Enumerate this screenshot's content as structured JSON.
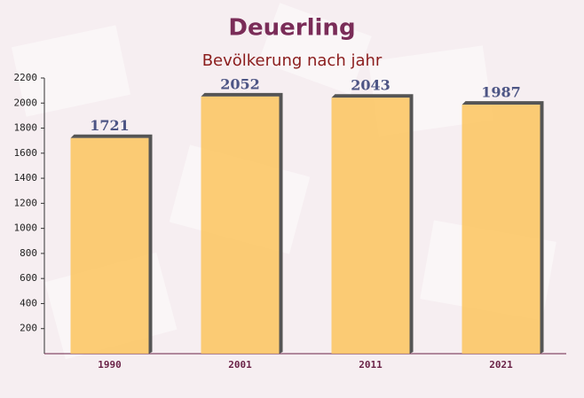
{
  "chart_data": {
    "type": "bar",
    "title": "Deuerling",
    "subtitle": "Bevölkerung nach jahr",
    "categories": [
      "1990",
      "2001",
      "2011",
      "2021"
    ],
    "values": [
      1721,
      2052,
      2043,
      1987
    ],
    "color": "#fcc45e",
    "ylim": [
      0,
      2200
    ],
    "yticks": [
      200,
      400,
      600,
      800,
      1000,
      1200,
      1400,
      1600,
      1800,
      2000,
      2200
    ]
  }
}
